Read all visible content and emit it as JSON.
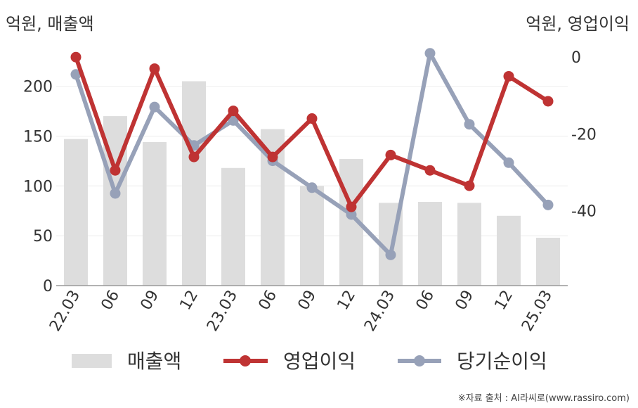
{
  "units": {
    "left": "억원, 매출액",
    "right": "억원, 영업이익"
  },
  "source": "※자료 출처 : AI라씨로(www.rassiro.com)",
  "colors": {
    "bar": "#dddddd",
    "op": "#bf3333",
    "net": "#97a1b8",
    "axis": "#999999",
    "grid": "#eeeeee"
  },
  "chart_data": {
    "type": "bar+line",
    "categories": [
      "22.03",
      "06",
      "09",
      "12",
      "23.03",
      "06",
      "09",
      "12",
      "24.03",
      "06",
      "09",
      "12",
      "25.03"
    ],
    "y_left": {
      "lim": [
        0,
        235
      ],
      "ticks": [
        0,
        50,
        100,
        150,
        200
      ]
    },
    "y_right": {
      "lim": [
        -59.5,
        1.5
      ],
      "ticks": [
        0,
        -20,
        -40
      ]
    },
    "series": [
      {
        "name": "매출액",
        "kind": "bar",
        "axis": "left",
        "values": [
          147,
          170,
          144,
          205,
          118,
          157,
          100,
          127,
          83,
          84,
          83,
          70,
          48
        ]
      },
      {
        "name": "영업이익",
        "kind": "line",
        "axis": "right",
        "values": [
          0,
          -29.5,
          -3,
          -26,
          -14,
          -26,
          -16,
          -39,
          -25.5,
          -29.5,
          -33.5,
          -5,
          -11.5
        ]
      },
      {
        "name": "당기순이익",
        "kind": "line",
        "axis": "right",
        "values": [
          -4.5,
          -35.5,
          -13,
          -23,
          -16.5,
          -27,
          -34,
          -41,
          -51.5,
          1,
          -17.5,
          -27.5,
          -38.5
        ]
      }
    ],
    "legend": [
      "매출액",
      "영업이익",
      "당기순이익"
    ],
    "legend_position": "bottom",
    "grid": true
  }
}
